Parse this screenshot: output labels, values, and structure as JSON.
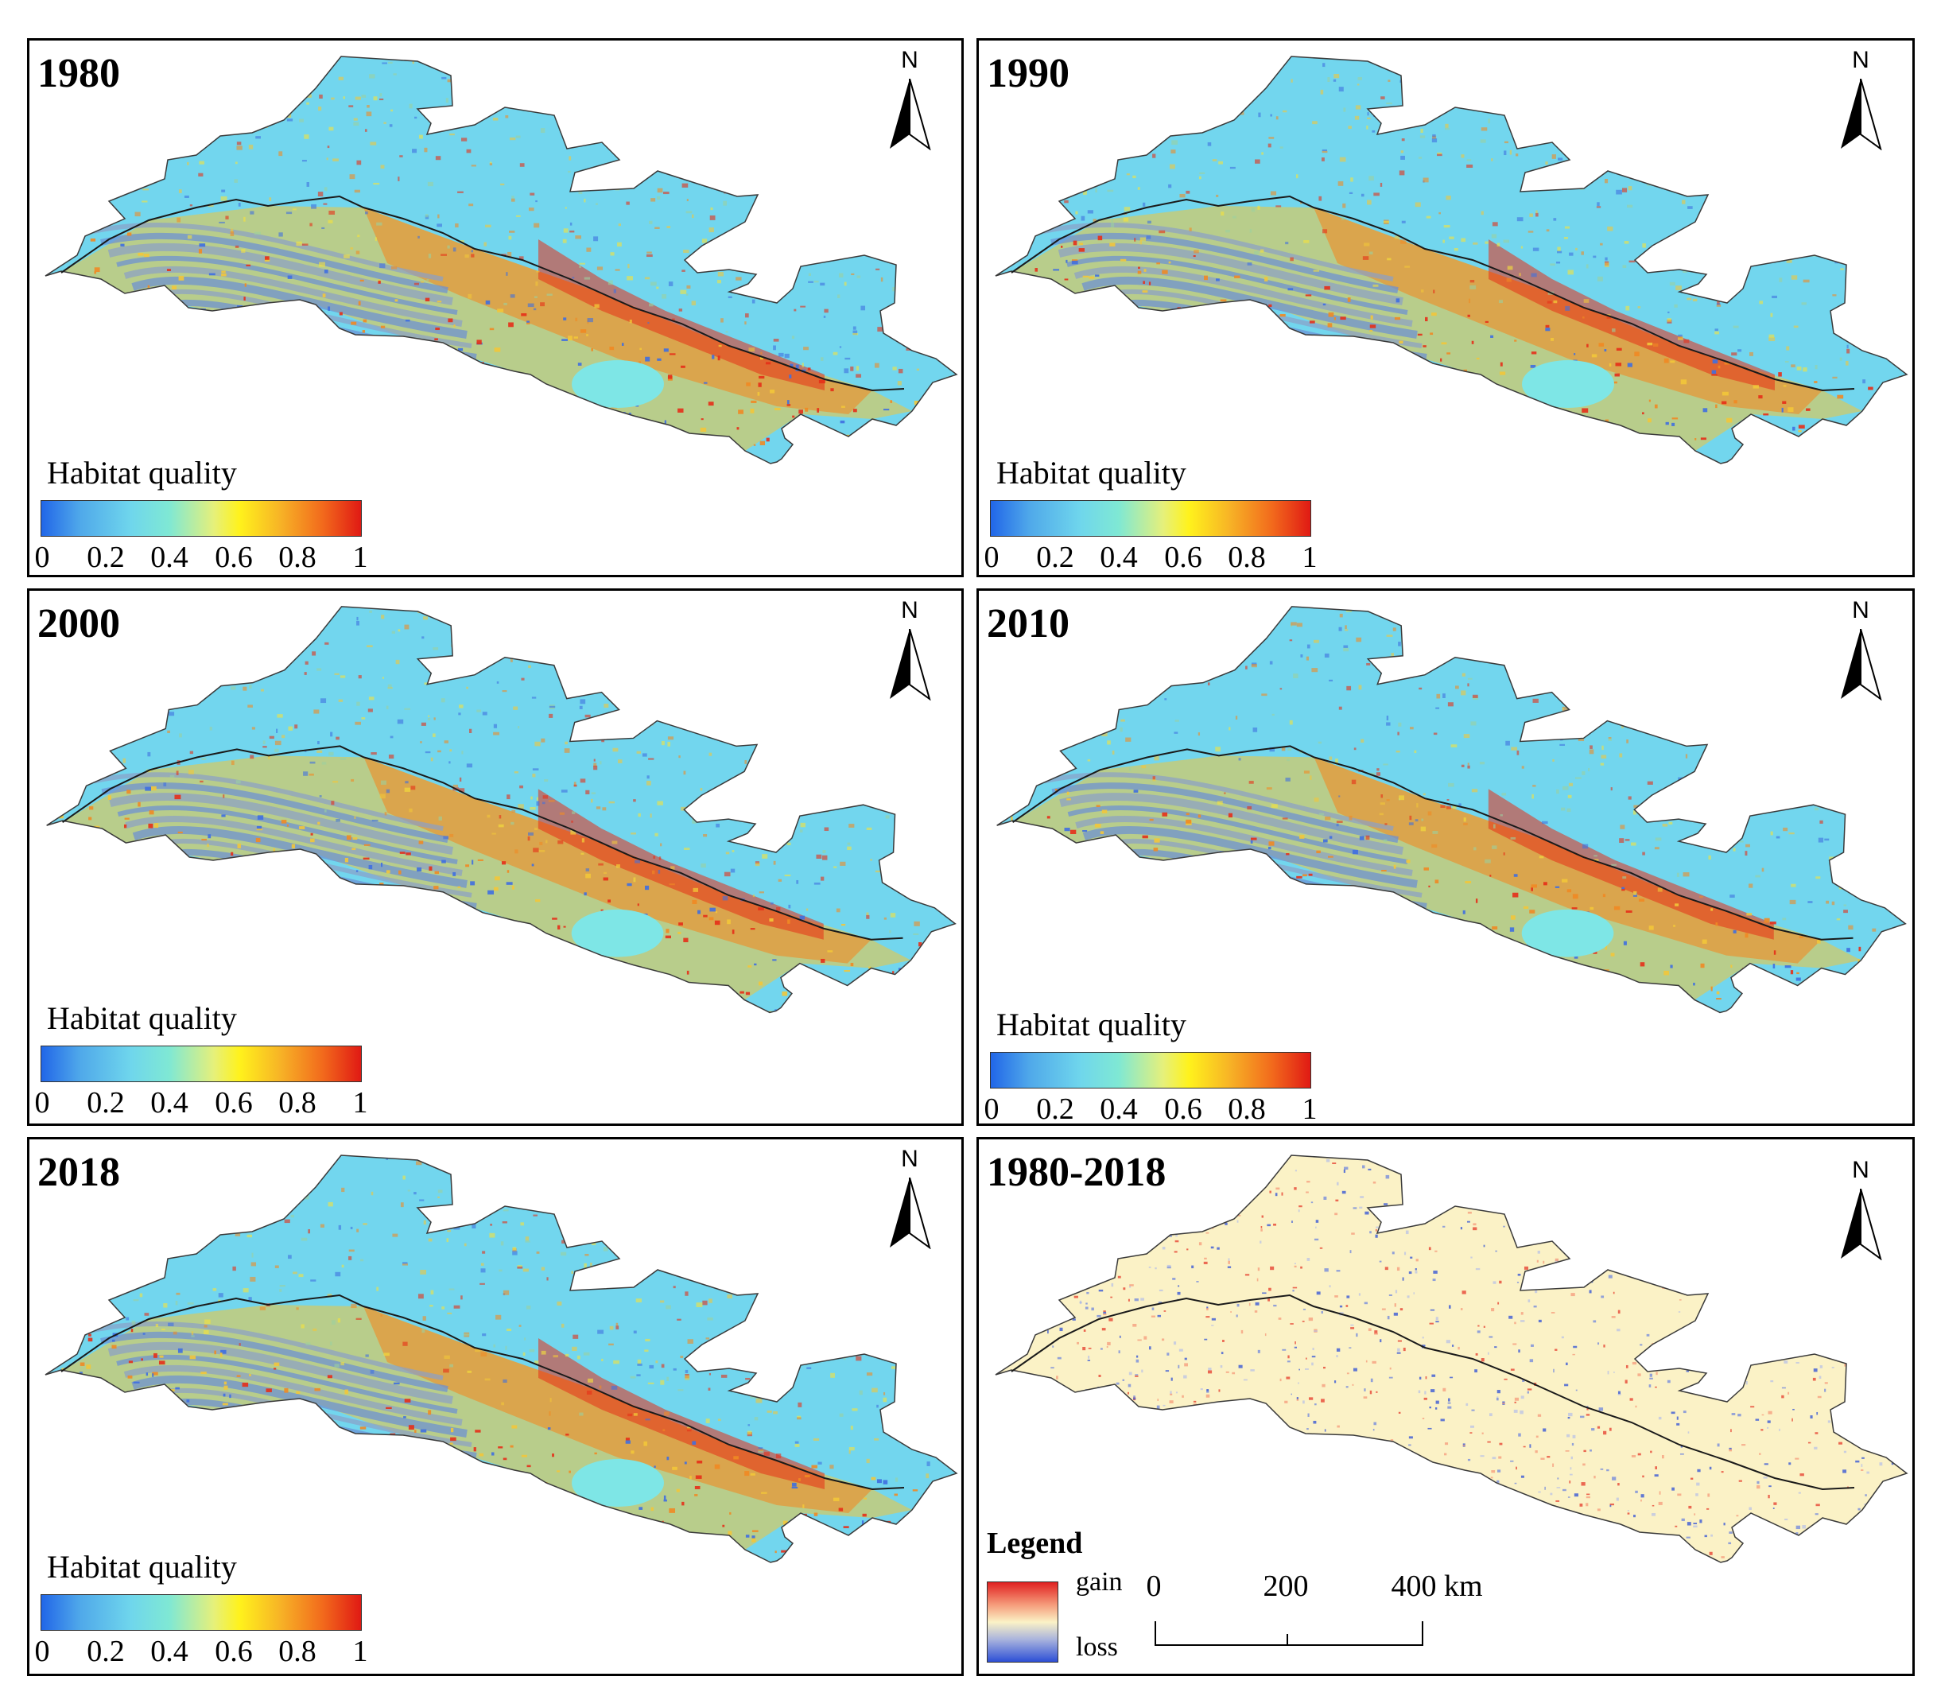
{
  "panels": [
    {
      "year": "1980",
      "north": "N",
      "legend": {
        "title": "Habitat quality",
        "ticks": [
          "0",
          "0.2",
          "0.4",
          "0.6",
          "0.8",
          "1"
        ]
      }
    },
    {
      "year": "1990",
      "north": "N",
      "legend": {
        "title": "Habitat quality",
        "ticks": [
          "0",
          "0.2",
          "0.4",
          "0.6",
          "0.8",
          "1"
        ]
      }
    },
    {
      "year": "2000",
      "north": "N",
      "legend": {
        "title": "Habitat quality",
        "ticks": [
          "0",
          "0.2",
          "0.4",
          "0.6",
          "0.8",
          "1"
        ]
      }
    },
    {
      "year": "2010",
      "north": "N",
      "legend": {
        "title": "Habitat quality",
        "ticks": [
          "0",
          "0.2",
          "0.4",
          "0.6",
          "0.8",
          "1"
        ]
      }
    },
    {
      "year": "2018",
      "north": "N",
      "legend": {
        "title": "Habitat quality",
        "ticks": [
          "0",
          "0.2",
          "0.4",
          "0.6",
          "0.8",
          "1"
        ]
      }
    }
  ],
  "change_panel": {
    "year": "1980-2018",
    "north": "N",
    "legend": {
      "title": "Legend",
      "high": "gain",
      "low": "loss"
    },
    "scalebar": {
      "labels": [
        "0",
        "200",
        "400 km"
      ]
    }
  },
  "colors": {
    "habitat_ramp": [
      "#2166e8",
      "#6fd6ec",
      "#fff21c",
      "#f26a1c",
      "#e01a14"
    ],
    "change_ramp": [
      "#e02020",
      "#fbf2c6",
      "#2d4fd6"
    ],
    "base_fill": "#72d6ee",
    "change_base": "#fbf2c6"
  }
}
